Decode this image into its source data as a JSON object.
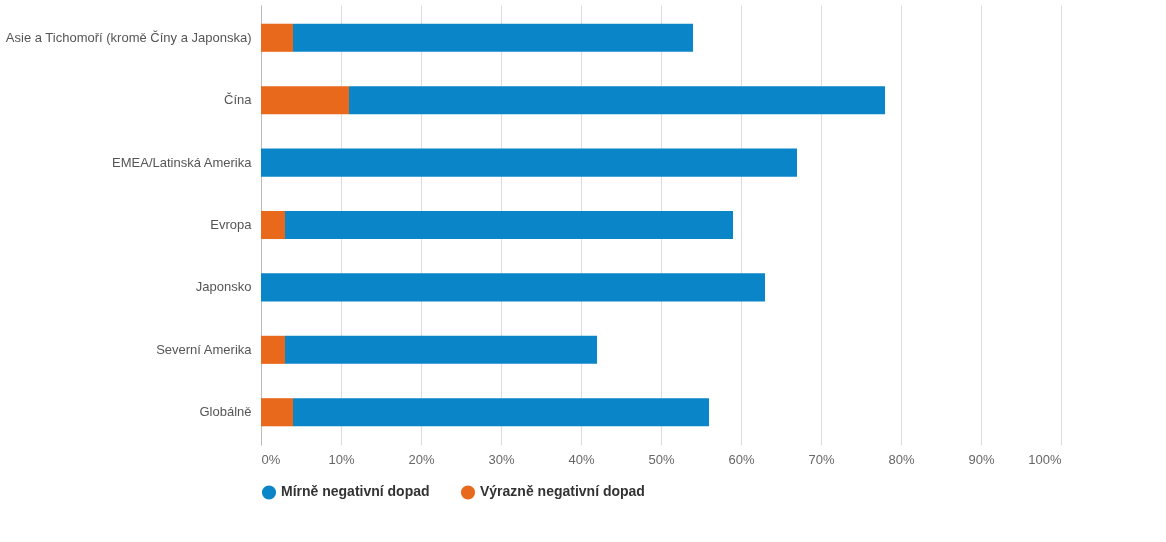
{
  "chart_data": {
    "type": "bar",
    "orientation": "horizontal",
    "stacked": true,
    "categories": [
      "Asie a Tichomoří (kromě Číny a Japonska)",
      "Čína",
      "EMEA/Latinská Amerika",
      "Evropa",
      "Japonsko",
      "Severní Amerika",
      "Globálně"
    ],
    "series": [
      {
        "name": "Výrazně negativní dopad",
        "color": "#e8681c",
        "values": [
          4,
          11,
          0,
          3,
          0,
          3,
          4
        ]
      },
      {
        "name": "Mírně negativní dopad",
        "color": "#0a86c8",
        "values": [
          50,
          67,
          67,
          56,
          63,
          39,
          52
        ]
      }
    ],
    "xlim": [
      0,
      100
    ],
    "xticks": [
      {
        "value": 0,
        "label": "0%"
      },
      {
        "value": 10,
        "label": "10%"
      },
      {
        "value": 20,
        "label": "20%"
      },
      {
        "value": 30,
        "label": "30%"
      },
      {
        "value": 40,
        "label": "40%"
      },
      {
        "value": 50,
        "label": "50%"
      },
      {
        "value": 60,
        "label": "60%"
      },
      {
        "value": 70,
        "label": "70%"
      },
      {
        "value": 80,
        "label": "80%"
      },
      {
        "value": 90,
        "label": "90%"
      },
      {
        "value": 100,
        "label": "100%"
      }
    ],
    "grid": "x",
    "legend": "bottom"
  }
}
